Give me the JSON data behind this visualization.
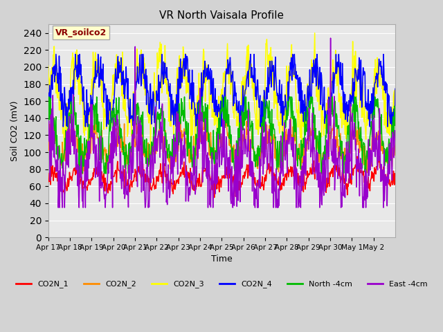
{
  "title": "VR North Vaisala Profile",
  "xlabel": "Time",
  "ylabel": "Soil CO2 (mV)",
  "ylim": [
    0,
    250
  ],
  "yticks": [
    0,
    20,
    40,
    60,
    80,
    100,
    120,
    140,
    160,
    180,
    200,
    220,
    240
  ],
  "xtick_labels": [
    "Apr 17",
    "Apr 18",
    "Apr 19",
    "Apr 20",
    "Apr 21",
    "Apr 22",
    "Apr 23",
    "Apr 24",
    "Apr 25",
    "Apr 26",
    "Apr 27",
    "Apr 28",
    "Apr 29",
    "Apr 30",
    "May 1",
    "May 2"
  ],
  "n_xticks": 16,
  "legend_entries": [
    "CO2N_1",
    "CO2N_2",
    "CO2N_3",
    "CO2N_4",
    "North -4cm",
    "East -4cm"
  ],
  "line_colors": [
    "#ff0000",
    "#ff8c00",
    "#ffff00",
    "#0000ff",
    "#00bb00",
    "#9900cc"
  ],
  "annotation_text": "VR_soilco2",
  "annotation_color": "#8b0000",
  "annotation_bg": "#ffffcc",
  "bg_color": "#d3d3d3",
  "plot_bg_color": "#e8e8e8"
}
